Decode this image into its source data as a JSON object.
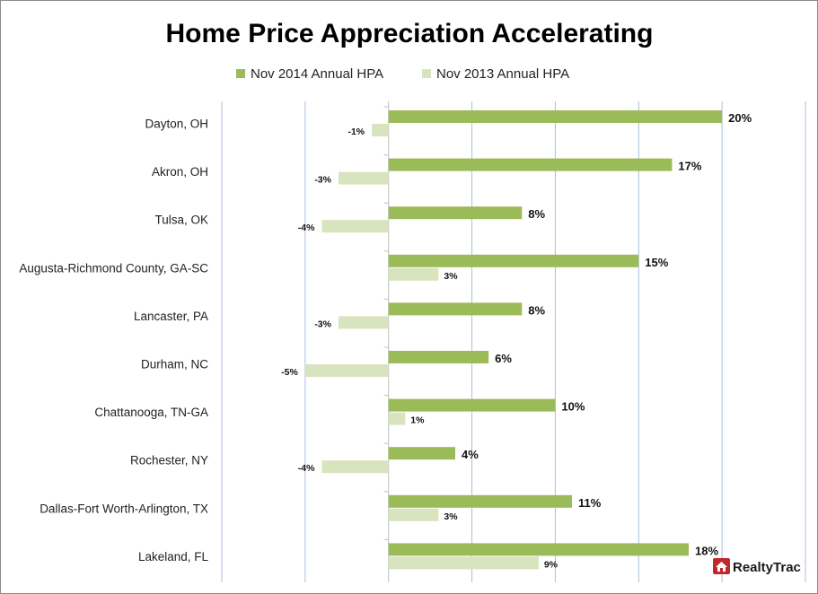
{
  "chart_data": {
    "type": "bar",
    "orientation": "horizontal",
    "title": "Home Price Appreciation Accelerating",
    "categories": [
      "Dayton, OH",
      "Akron, OH",
      "Tulsa, OK",
      "Augusta-Richmond County, GA-SC",
      "Lancaster, PA",
      "Durham, NC",
      "Chattanooga, TN-GA",
      "Rochester, NY",
      "Dallas-Fort Worth-Arlington, TX",
      "Lakeland, FL"
    ],
    "series": [
      {
        "name": "Nov 2014 Annual HPA",
        "color": "#9bbb59",
        "values": [
          20,
          17,
          8,
          15,
          8,
          6,
          10,
          4,
          11,
          18
        ],
        "labels": [
          "20%",
          "17%",
          "8%",
          "15%",
          "8%",
          "6%",
          "10%",
          "4%",
          "11%",
          "18%"
        ]
      },
      {
        "name": "Nov 2013 Annual HPA",
        "color": "#d7e4bd",
        "values": [
          -1,
          -3,
          -4,
          3,
          -3,
          -5,
          1,
          -4,
          3,
          9
        ],
        "labels": [
          "-1%",
          "-3%",
          "-4%",
          "3%",
          "-3%",
          "-5%",
          "1%",
          "-4%",
          "3%",
          "9%"
        ]
      }
    ],
    "xlim": [
      -10,
      25
    ],
    "gridlines": [
      -10,
      -5,
      0,
      5,
      10,
      15,
      20,
      25
    ],
    "grid": true,
    "legend_position": "top"
  },
  "logo": {
    "text": "RealtyTrac",
    "color": "#c0282d",
    "icon": "house-icon"
  }
}
